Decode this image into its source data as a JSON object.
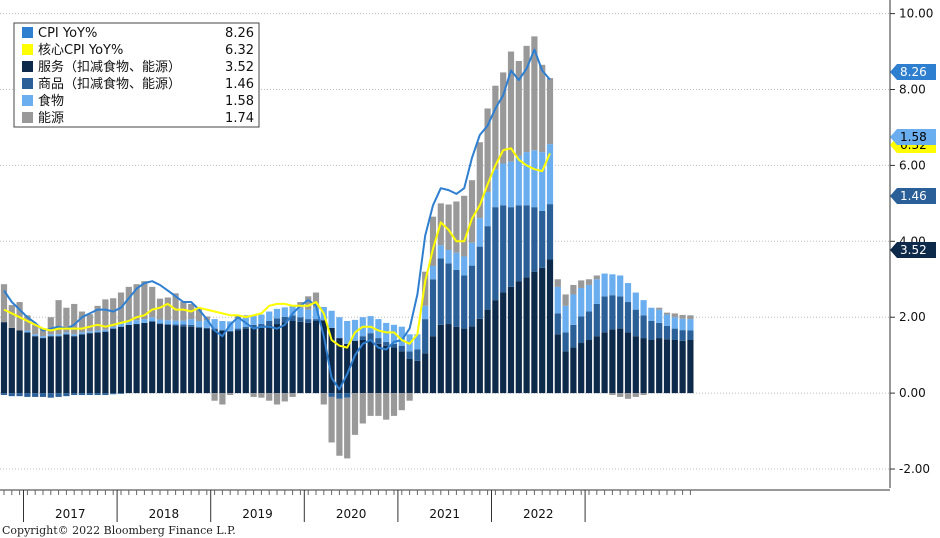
{
  "chart_data": {
    "type": "bar",
    "stacked": true,
    "categories": [
      "2016-10",
      "2016-11",
      "2016-12",
      "2017-01",
      "2017-02",
      "2017-03",
      "2017-04",
      "2017-05",
      "2017-06",
      "2017-07",
      "2017-08",
      "2017-09",
      "2017-10",
      "2017-11",
      "2017-12",
      "2018-01",
      "2018-02",
      "2018-03",
      "2018-04",
      "2018-05",
      "2018-06",
      "2018-07",
      "2018-08",
      "2018-09",
      "2018-10",
      "2018-11",
      "2018-12",
      "2019-01",
      "2019-02",
      "2019-03",
      "2019-04",
      "2019-05",
      "2019-06",
      "2019-07",
      "2019-08",
      "2019-09",
      "2019-10",
      "2019-11",
      "2019-12",
      "2020-01",
      "2020-02",
      "2020-03",
      "2020-04",
      "2020-05",
      "2020-06",
      "2020-07",
      "2020-08",
      "2020-09",
      "2020-10",
      "2020-11",
      "2020-12",
      "2021-01",
      "2021-02",
      "2021-03",
      "2021-04",
      "2021-05",
      "2021-06",
      "2021-07",
      "2021-08",
      "2021-09",
      "2021-10",
      "2021-11",
      "2021-12",
      "2022-01",
      "2022-02",
      "2022-03",
      "2022-04",
      "2022-05",
      "2022-06",
      "2022-07",
      "2022-08",
      "2022-09",
      "2022-10",
      "2022-11",
      "2022-12",
      "2023-01",
      "2023-02",
      "2023-03",
      "2023-04",
      "2023-05",
      "2023-06",
      "2023-07",
      "2023-08",
      "2023-09",
      "2023-10",
      "2023-11",
      "2023-12",
      "2024-01",
      "2024-02"
    ],
    "series": [
      {
        "name": "服务（扣减食物、能源）",
        "color": "#0e2a4a",
        "values": [
          1.87,
          1.72,
          1.65,
          1.6,
          1.5,
          1.45,
          1.5,
          1.5,
          1.55,
          1.5,
          1.55,
          1.58,
          1.6,
          1.62,
          1.7,
          1.75,
          1.8,
          1.82,
          1.85,
          1.88,
          1.82,
          1.8,
          1.78,
          1.76,
          1.75,
          1.72,
          1.7,
          1.68,
          1.65,
          1.62,
          1.65,
          1.7,
          1.72,
          1.72,
          1.78,
          1.82,
          1.86,
          1.9,
          1.88,
          1.85,
          1.9,
          1.92,
          1.72,
          1.45,
          1.3,
          1.38,
          1.4,
          1.38,
          1.3,
          1.25,
          1.2,
          1.1,
          0.9,
          0.85,
          1.05,
          1.5,
          1.8,
          1.82,
          1.75,
          1.7,
          1.76,
          1.96,
          2.2,
          2.45,
          2.65,
          2.8,
          2.95,
          3.05,
          3.2,
          3.3,
          3.52,
          1.55,
          1.1,
          1.2,
          1.32,
          1.4,
          1.5,
          1.6,
          1.68,
          1.7,
          1.6,
          1.5,
          1.45,
          1.4,
          1.45,
          1.42,
          1.4,
          1.38,
          1.4
        ]
      },
      {
        "name": "商品（扣减食物、能源）",
        "color": "#2a5f98",
        "values": [
          -0.05,
          -0.08,
          -0.08,
          -0.1,
          -0.1,
          -0.1,
          -0.12,
          -0.1,
          -0.08,
          -0.05,
          -0.05,
          -0.05,
          -0.05,
          -0.05,
          -0.03,
          -0.02,
          0.0,
          0.0,
          0.0,
          0.02,
          0.02,
          0.02,
          0.03,
          0.05,
          0.05,
          0.03,
          0.02,
          0.02,
          0.0,
          0.02,
          0.05,
          0.05,
          0.08,
          0.1,
          0.12,
          0.15,
          0.15,
          0.15,
          0.12,
          0.1,
          0.05,
          0.0,
          -0.1,
          -0.15,
          -0.12,
          0.0,
          0.1,
          0.2,
          0.15,
          0.1,
          0.1,
          0.15,
          0.2,
          0.3,
          0.9,
          1.5,
          1.75,
          1.6,
          1.5,
          1.4,
          1.6,
          1.9,
          2.2,
          2.45,
          2.3,
          2.1,
          2.0,
          1.9,
          1.7,
          1.5,
          1.46,
          0.55,
          0.5,
          0.6,
          0.7,
          0.75,
          0.85,
          0.95,
          0.9,
          0.85,
          0.8,
          0.7,
          0.6,
          0.5,
          0.4,
          0.35,
          0.3,
          0.28,
          0.25
        ]
      },
      {
        "name": "食物",
        "color": "#6aaef0",
        "values": [
          0.0,
          0.0,
          0.0,
          0.05,
          0.05,
          0.05,
          0.05,
          0.05,
          0.05,
          0.05,
          0.05,
          0.05,
          0.05,
          0.05,
          0.05,
          0.1,
          0.1,
          0.1,
          0.1,
          0.1,
          0.1,
          0.1,
          0.1,
          0.1,
          0.15,
          0.15,
          0.2,
          0.25,
          0.25,
          0.25,
          0.25,
          0.25,
          0.25,
          0.25,
          0.25,
          0.25,
          0.25,
          0.25,
          0.25,
          0.25,
          0.3,
          0.35,
          0.45,
          0.55,
          0.6,
          0.55,
          0.5,
          0.45,
          0.5,
          0.5,
          0.5,
          0.5,
          0.45,
          0.4,
          0.35,
          0.35,
          0.35,
          0.35,
          0.45,
          0.5,
          0.6,
          0.75,
          0.9,
          1.0,
          1.1,
          1.2,
          1.3,
          1.4,
          1.5,
          1.55,
          1.58,
          0.7,
          0.7,
          0.8,
          0.75,
          0.7,
          0.65,
          0.6,
          0.55,
          0.55,
          0.5,
          0.45,
          0.4,
          0.35,
          0.35,
          0.3,
          0.3,
          0.3,
          0.3
        ]
      },
      {
        "name": "能源",
        "color": "#999999",
        "values": [
          1.0,
          0.6,
          0.75,
          0.4,
          0.25,
          0.2,
          0.45,
          0.9,
          0.65,
          0.8,
          0.55,
          0.45,
          0.65,
          0.8,
          0.75,
          0.8,
          0.9,
          0.95,
          1.0,
          0.8,
          0.55,
          0.6,
          0.72,
          0.5,
          0.4,
          0.35,
          0.1,
          -0.2,
          -0.3,
          -0.05,
          0.1,
          0.05,
          -0.1,
          -0.12,
          -0.2,
          -0.3,
          -0.22,
          -0.1,
          0.15,
          0.35,
          0.4,
          -0.3,
          -1.2,
          -1.5,
          -1.6,
          -1.1,
          -0.8,
          -0.6,
          -0.6,
          -0.7,
          -0.6,
          -0.45,
          -0.2,
          0.0,
          0.9,
          1.3,
          1.1,
          1.2,
          1.35,
          1.6,
          1.65,
          2.0,
          2.2,
          2.2,
          2.4,
          2.9,
          2.5,
          2.8,
          3.0,
          2.3,
          1.74,
          0.2,
          0.3,
          0.25,
          0.2,
          0.15,
          0.1,
          0.0,
          -0.05,
          -0.1,
          -0.15,
          -0.1,
          -0.05,
          0.0,
          0.05,
          0.05,
          0.1,
          0.1,
          0.1
        ]
      }
    ],
    "lines": [
      {
        "name": "CPI YoY%",
        "color": "#2f7fd0",
        "values": [
          2.7,
          2.4,
          2.2,
          2.0,
          1.85,
          1.65,
          1.7,
          1.75,
          1.7,
          1.8,
          2.0,
          2.1,
          2.2,
          2.2,
          2.15,
          2.25,
          2.5,
          2.75,
          2.9,
          2.95,
          2.85,
          2.7,
          2.55,
          2.4,
          2.4,
          2.2,
          1.95,
          1.65,
          1.5,
          1.8,
          2.0,
          1.85,
          1.7,
          1.75,
          1.75,
          1.7,
          1.8,
          2.1,
          2.3,
          2.45,
          2.3,
          1.5,
          0.4,
          0.1,
          0.5,
          1.0,
          1.3,
          1.4,
          1.2,
          1.15,
          1.35,
          1.4,
          1.7,
          2.6,
          4.15,
          4.95,
          5.4,
          5.35,
          5.25,
          5.4,
          6.2,
          6.8,
          7.05,
          7.5,
          7.85,
          8.5,
          8.25,
          8.55,
          9.05,
          8.5,
          8.26
        ]
      },
      {
        "name": "核心CPI YoY%",
        "color": "#ffff00",
        "values": [
          2.2,
          2.1,
          2.0,
          1.9,
          1.8,
          1.7,
          1.65,
          1.7,
          1.7,
          1.7,
          1.7,
          1.75,
          1.8,
          1.75,
          1.8,
          1.85,
          1.9,
          2.0,
          2.05,
          2.2,
          2.25,
          2.35,
          2.2,
          2.2,
          2.15,
          2.25,
          2.2,
          2.15,
          2.1,
          2.05,
          2.05,
          2.0,
          2.05,
          2.1,
          2.3,
          2.35,
          2.35,
          2.3,
          2.3,
          2.3,
          2.4,
          2.1,
          1.4,
          1.25,
          1.2,
          1.6,
          1.75,
          1.75,
          1.65,
          1.6,
          1.6,
          1.4,
          1.3,
          1.55,
          2.95,
          3.8,
          4.5,
          4.3,
          4.0,
          4.0,
          4.6,
          4.95,
          5.5,
          6.0,
          6.4,
          6.45,
          6.15,
          6.0,
          5.9,
          5.85,
          6.32
        ]
      }
    ],
    "legend": [
      {
        "label": "CPI YoY%",
        "value": "8.26",
        "color": "#2f7fd0"
      },
      {
        "label": "核心CPI YoY%",
        "value": "6.32",
        "color": "#ffff00"
      },
      {
        "label": "服务（扣减食物、能源）",
        "value": "3.52",
        "color": "#0e2a4a"
      },
      {
        "label": "商品（扣减食物、能源）",
        "value": "1.46",
        "color": "#2a5f98"
      },
      {
        "label": "食物",
        "value": "1.58",
        "color": "#6aaef0"
      },
      {
        "label": "能源",
        "value": "1.74",
        "color": "#999999"
      }
    ],
    "value_tags": [
      {
        "value": 8.26,
        "label": "8.26",
        "bg": "#2f7fd0",
        "fg": "#ffffff"
      },
      {
        "value": 6.32,
        "label": "6.32",
        "bg": "#ffff00",
        "fg": "#000000"
      },
      {
        "value": 1.58,
        "label": "1.58",
        "bg": "#6aaef0",
        "fg": "#000000"
      },
      {
        "value": 1.46,
        "label": "1.46",
        "bg": "#2a5f98",
        "fg": "#ffffff"
      },
      {
        "value": 3.52,
        "label": "3.52",
        "bg": "#0e2a4a",
        "fg": "#ffffff"
      }
    ],
    "y_ticks": [
      "10.00",
      "8.00",
      "6.00",
      "4.00",
      "2.00",
      "0.00",
      "-2.00"
    ],
    "ylim": [
      -2.5,
      10.2
    ],
    "x_year_labels": [
      "2017",
      "2018",
      "2019",
      "2020",
      "2021",
      "2022"
    ],
    "grid": true,
    "legend_position": "top-left",
    "title": "",
    "xlabel": "",
    "ylabel": ""
  },
  "footer": {
    "copyright": "Copyright© 2022 Bloomberg Finance L.P."
  }
}
